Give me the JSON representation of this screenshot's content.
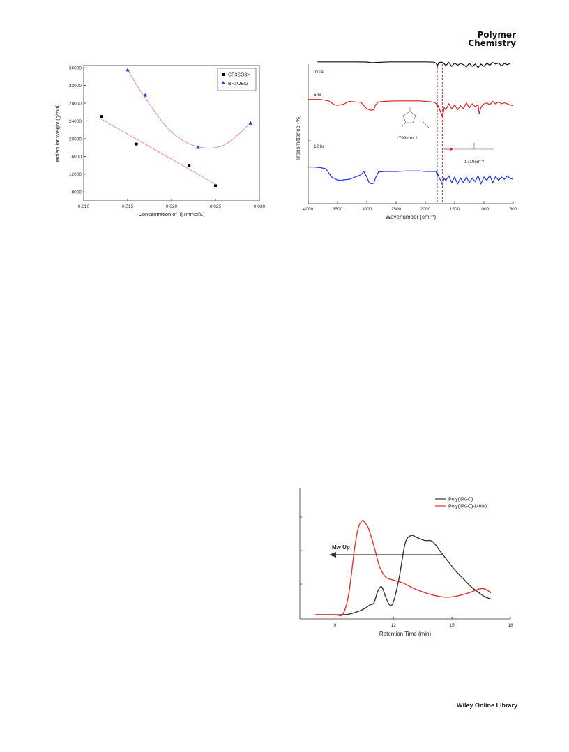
{
  "header": {
    "journal_line1": "Polymer",
    "journal_line2": "Chemistry"
  },
  "footer": {
    "text": "Wiley Online Library"
  },
  "chart_data": [
    {
      "type": "scatter",
      "xlabel": "Concentration of [I] (mmol/L)",
      "ylabel": "Molecular Weight (g/mol)",
      "xlim": [
        0.01,
        0.03
      ],
      "ylim": [
        6000,
        36500
      ],
      "xticks": [
        "0.010",
        "0.015",
        "0.020",
        "0.025",
        "0.030"
      ],
      "yticks": [
        "8000",
        "12000",
        "16000",
        "20000",
        "24000",
        "28000",
        "32000",
        "36000"
      ],
      "legend_position": "top-right",
      "series": [
        {
          "name": "CF3SO3H",
          "marker": "square",
          "color": "#000000",
          "fit_color": "#e8889a",
          "x": [
            0.012,
            0.016,
            0.022,
            0.025
          ],
          "y": [
            25000,
            18800,
            14000,
            9400
          ]
        },
        {
          "name": "BF3OEt2",
          "marker": "triangle",
          "color": "#1f3fe0",
          "fit_color": "#e8889a",
          "x": [
            0.015,
            0.017,
            0.023,
            0.029
          ],
          "y": [
            35500,
            29800,
            18000,
            23500
          ]
        }
      ]
    },
    {
      "type": "line",
      "xlabel": "Wavenumber (cm⁻¹)",
      "ylabel": "Transmittance (%)",
      "xlim": [
        4000,
        500
      ],
      "xticks": [
        "4000",
        "3500",
        "3000",
        "2500",
        "2000",
        "1500",
        "1000",
        "500"
      ],
      "series": [
        {
          "name": "initial",
          "color": "#111111",
          "x": [
            3840,
            3500,
            3200,
            3000,
            2950,
            2900,
            2850,
            2600,
            2300,
            2000,
            1850,
            1810,
            1799,
            1790,
            1770,
            1740,
            1700,
            1650,
            1600,
            1550,
            1500,
            1450,
            1400,
            1350,
            1300,
            1250,
            1200,
            1150,
            1100,
            1050,
            1000,
            950,
            900,
            850,
            800,
            750,
            700,
            650,
            600,
            560
          ],
          "y": [
            98,
            98,
            98,
            97.5,
            96,
            95,
            96,
            98,
            98,
            98,
            97,
            92,
            78,
            86,
            96,
            97,
            96,
            85,
            96,
            82,
            94,
            86,
            93,
            88,
            80,
            93,
            82,
            90,
            78,
            90,
            82,
            93,
            86,
            96,
            90,
            94,
            84,
            92,
            88,
            92
          ]
        },
        {
          "name": "6 hr",
          "color": "#e02020",
          "x": [
            4000,
            3800,
            3650,
            3550,
            3500,
            3400,
            3300,
            3200,
            3100,
            3000,
            2960,
            2920,
            2880,
            2850,
            2800,
            2700,
            2500,
            2300,
            2100,
            2000,
            1900,
            1850,
            1810,
            1799,
            1790,
            1760,
            1730,
            1710,
            1700,
            1680,
            1650,
            1600,
            1550,
            1500,
            1450,
            1400,
            1350,
            1300,
            1250,
            1200,
            1150,
            1100,
            1080,
            1050,
            1000,
            950,
            900,
            850,
            800,
            750,
            700,
            650,
            600,
            560,
            500
          ],
          "y": [
            79,
            79,
            76,
            68,
            67,
            69,
            75,
            74,
            73,
            60,
            58,
            57,
            58,
            68,
            74,
            75,
            76,
            76,
            76,
            75,
            74,
            73,
            70,
            62,
            67,
            60,
            50,
            43,
            48,
            62,
            58,
            70,
            60,
            68,
            58,
            66,
            60,
            72,
            62,
            70,
            64,
            68,
            50,
            63,
            70,
            72,
            68,
            75,
            70,
            74,
            70,
            72,
            70,
            68,
            66
          ]
        },
        {
          "name": "12 hr",
          "color": "#2030e0",
          "x": [
            4000,
            3900,
            3800,
            3700,
            3600,
            3500,
            3450,
            3400,
            3300,
            3200,
            3100,
            3050,
            3000,
            2960,
            2920,
            2880,
            2850,
            2800,
            2700,
            2500,
            2300,
            2100,
            2000,
            1900,
            1820,
            1810,
            1799,
            1790,
            1760,
            1730,
            1710,
            1700,
            1680,
            1650,
            1600,
            1550,
            1500,
            1450,
            1400,
            1350,
            1300,
            1250,
            1200,
            1150,
            1100,
            1050,
            1000,
            950,
            900,
            850,
            800,
            750,
            700,
            650,
            600,
            560,
            500
          ],
          "y": [
            48,
            48,
            47,
            45,
            30,
            25,
            24,
            25,
            26,
            30,
            34,
            40,
            30,
            20,
            18,
            19,
            29,
            39,
            40,
            40,
            41,
            41,
            40,
            40,
            40,
            38,
            32,
            36,
            28,
            22,
            16,
            20,
            28,
            24,
            32,
            20,
            30,
            18,
            28,
            20,
            30,
            20,
            28,
            22,
            32,
            18,
            30,
            24,
            33,
            20,
            31,
            24,
            30,
            26,
            32,
            28,
            26
          ]
        }
      ],
      "annotations": [
        {
          "text": "1799 cm⁻¹",
          "x": 1799,
          "line_style": "dashed",
          "line_color": "#111111"
        },
        {
          "text": "1710cm⁻¹",
          "x": 1710,
          "line_style": "dashed",
          "line_color": "#e02020"
        }
      ]
    },
    {
      "type": "line",
      "xlabel": "Retention Time (min)",
      "ylabel": "",
      "xlim": [
        7.2,
        18
      ],
      "xticks": [
        "9",
        "12",
        "15",
        "18"
      ],
      "legend_position": "top-right",
      "annotation": "Mw Up",
      "series": [
        {
          "name": "Poly(IPGC)",
          "color": "#333333",
          "x": [
            8,
            9,
            9.6,
            10,
            10.5,
            10.8,
            11,
            11.2,
            11.4,
            11.6,
            11.8,
            12,
            12.3,
            12.6,
            12.9,
            13.2,
            13.6,
            14,
            14.4,
            14.8,
            15.2,
            15.6,
            16,
            16.4,
            16.7,
            17
          ],
          "y": [
            0,
            0,
            0.2,
            2,
            6,
            10,
            12,
            24,
            28,
            18,
            10,
            13,
            38,
            72,
            80,
            78,
            75,
            74,
            64,
            54,
            44,
            36,
            28,
            22,
            18,
            16
          ]
        },
        {
          "name": "Poly(IPGC)-M600",
          "color": "#e83030",
          "x": [
            8,
            9,
            9.4,
            9.7,
            10,
            10.2,
            10.4,
            10.5,
            10.7,
            10.9,
            11.1,
            11.3,
            11.6,
            12,
            12.5,
            13,
            13.5,
            14,
            14.5,
            15,
            15.5,
            16,
            16.4,
            16.7,
            17
          ],
          "y": [
            0,
            0,
            0.5,
            20,
            66,
            88,
            95,
            94,
            88,
            76,
            62,
            48,
            38,
            35,
            32,
            27,
            23,
            20,
            18,
            18,
            20,
            23,
            26,
            26,
            22
          ]
        }
      ]
    }
  ]
}
